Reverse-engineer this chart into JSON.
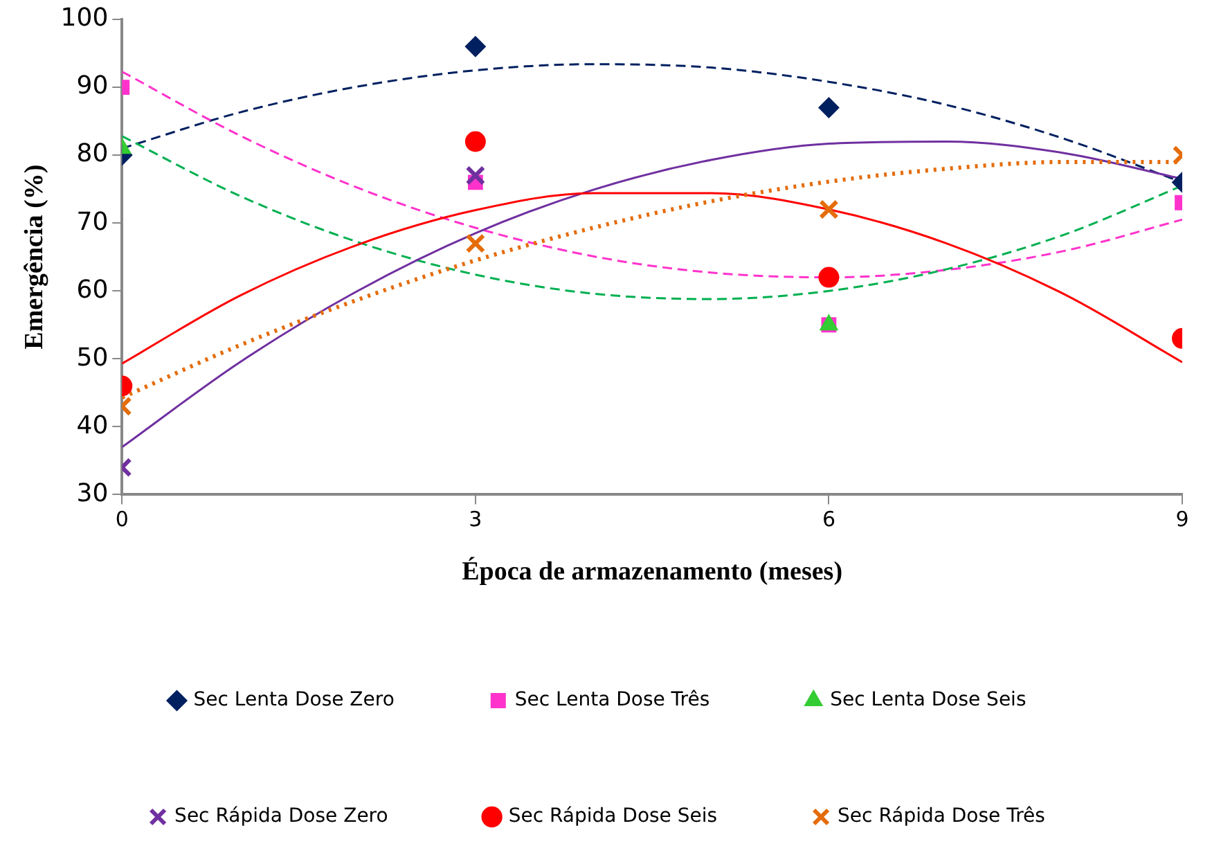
{
  "chart_data": {
    "type": "scatter",
    "xlabel": "Época de armazenamento (meses)",
    "ylabel": "Emergência (%)",
    "xlim": [
      0,
      9
    ],
    "xticks": [
      0,
      3,
      6,
      9
    ],
    "ylim": [
      30,
      100
    ],
    "yticks": [
      30,
      40,
      50,
      60,
      70,
      80,
      90,
      100
    ],
    "grid": false,
    "legend": "bottom",
    "series": [
      {
        "name": "Sec Lenta Dose Zero",
        "color": "#002060",
        "marker": "diamond",
        "x": [
          0,
          3,
          6,
          9
        ],
        "values": [
          80,
          96,
          87,
          76
        ]
      },
      {
        "name": "Sec Lenta Dose Três",
        "color": "#ff33cc",
        "marker": "square",
        "x": [
          0,
          3,
          6,
          9
        ],
        "values": [
          90,
          76,
          55,
          73
        ]
      },
      {
        "name": "Sec Lenta Dose Seis",
        "color": "#33cc33",
        "marker": "triangle",
        "x": [
          0,
          3,
          6
        ],
        "values": [
          81,
          null,
          55
        ]
      },
      {
        "name": "Sec Rápida Dose Zero",
        "color": "#7030a0",
        "marker": "cross",
        "x": [
          0,
          3
        ],
        "values": [
          34,
          77
        ]
      },
      {
        "name": "Sec Rápida Dose Seis",
        "color": "#ff0000",
        "marker": "circle",
        "x": [
          0,
          3,
          6,
          9
        ],
        "values": [
          46,
          82,
          62,
          53
        ]
      },
      {
        "name": "Sec Rápida Dose Três",
        "color": "#e46c0a",
        "marker": "cross",
        "x": [
          0,
          3,
          6,
          9
        ],
        "values": [
          43,
          67,
          72,
          80
        ]
      },
      {
        "type": "line",
        "color": "#002060",
        "marker": "none",
        "line_style": "dashed",
        "x": [
          0,
          1,
          2,
          3,
          4,
          5,
          6,
          7,
          8,
          9
        ],
        "values": [
          81,
          86.3,
          90.1,
          92.5,
          93.4,
          92.9,
          90.8,
          87.4,
          82.4,
          76
        ]
      },
      {
        "type": "line",
        "color": "#ff33cc",
        "marker": "none",
        "line_style": "dashed",
        "x": [
          0,
          1,
          2,
          3,
          4,
          5,
          6,
          7,
          8,
          9
        ],
        "values": [
          92.3,
          82.9,
          75.2,
          69.3,
          65.1,
          62.7,
          62,
          63.1,
          65.9,
          70.5
        ]
      },
      {
        "type": "line",
        "color": "#00b050",
        "marker": "none",
        "line_style": "dashed",
        "x": [
          0,
          1,
          2,
          3,
          4,
          5,
          6,
          7,
          8,
          9
        ],
        "values": [
          82.8,
          74,
          67.2,
          62.4,
          59.6,
          58.8,
          60,
          63.2,
          68.3,
          75.5
        ]
      },
      {
        "type": "line",
        "color": "#7030a0",
        "marker": "none",
        "line_style": "solid",
        "x": [
          0,
          1,
          2,
          3,
          4,
          5,
          6,
          7,
          8,
          9
        ],
        "values": [
          37,
          49.5,
          60,
          68.5,
          74.9,
          79.3,
          81.7,
          82,
          80.3,
          76.5
        ]
      },
      {
        "type": "line",
        "color": "#ff0000",
        "marker": "none",
        "line_style": "solid",
        "x": [
          0,
          1,
          2,
          3,
          4,
          5,
          6,
          7,
          8,
          9
        ],
        "values": [
          49.3,
          59.3,
          66.8,
          71.9,
          74.4,
          74.4,
          72,
          67,
          59.5,
          49.5
        ]
      },
      {
        "type": "line",
        "color": "#e46c0a",
        "marker": "none",
        "line_style": "dotted",
        "x": [
          0,
          1,
          2,
          3,
          4,
          5,
          6,
          7,
          8,
          9
        ],
        "values": [
          44.3,
          52,
          58.7,
          64.5,
          69.3,
          73.2,
          76.1,
          78,
          79,
          79
        ]
      }
    ]
  }
}
